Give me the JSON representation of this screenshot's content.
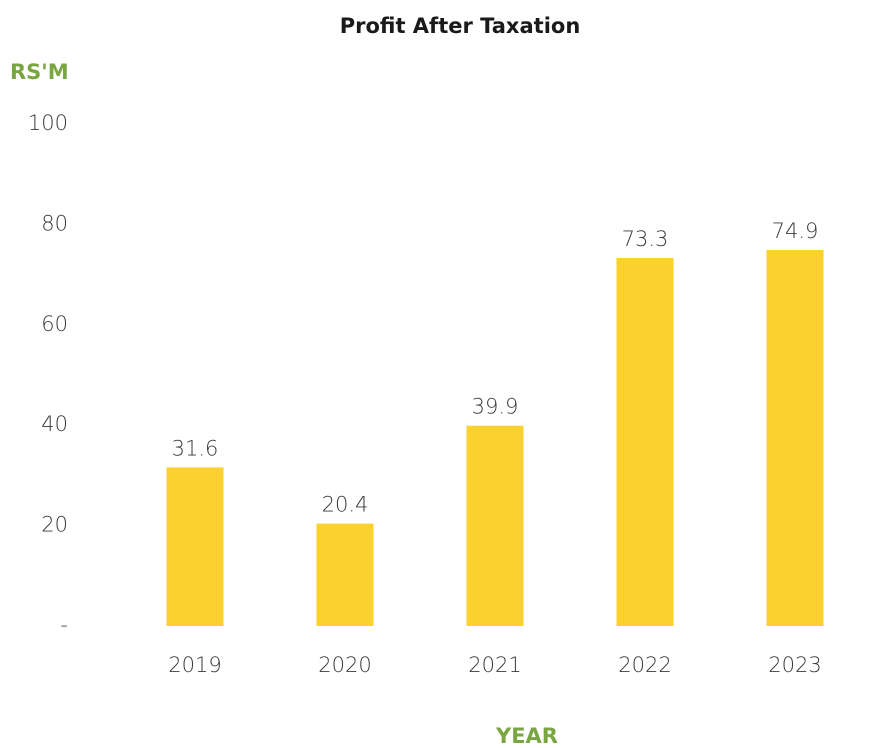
{
  "chart_data": {
    "type": "bar",
    "title": "Profit After Taxation",
    "y_label": "RS'M",
    "x_label": "YEAR",
    "categories": [
      "2019",
      "2020",
      "2021",
      "2022",
      "2023"
    ],
    "values": [
      31.6,
      20.4,
      39.9,
      73.3,
      74.9
    ],
    "color": "#fbd12f",
    "ylim": [
      0,
      100
    ],
    "yticks": [
      {
        "value": 0,
        "label": "-"
      },
      20,
      40,
      60,
      80,
      100
    ],
    "grid": false
  }
}
